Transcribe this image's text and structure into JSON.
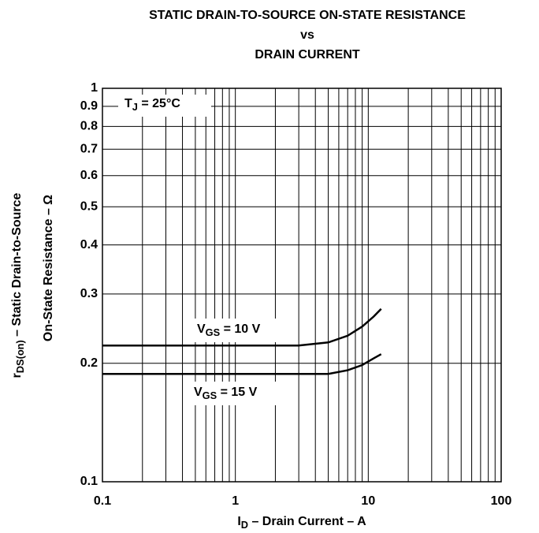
{
  "chart_data": {
    "type": "line",
    "title": [
      "STATIC DRAIN-TO-SOURCE ON-STATE RESISTANCE",
      "vs",
      "DRAIN CURRENT"
    ],
    "xlabel": {
      "main": "I",
      "sub": "D",
      "rest": " – Drain Current – A"
    },
    "ylabel": [
      {
        "main": "r",
        "sub": "DS(on)",
        "rest": " – Static Drain-to-Source"
      },
      {
        "main": "On-State Resistance – Ω"
      }
    ],
    "annotation": {
      "main": "T",
      "sub": "J",
      "rest": " = 25°C"
    },
    "xscale": "log",
    "yscale": "log",
    "grid": true,
    "xlim": [
      0.1,
      100
    ],
    "ylim": [
      0.1,
      1
    ],
    "xticks": [
      0.1,
      1,
      10,
      100
    ],
    "xticks_minor": [
      0.2,
      0.3,
      0.4,
      0.5,
      0.6,
      0.7,
      0.8,
      0.9,
      2,
      3,
      4,
      5,
      6,
      7,
      8,
      9,
      20,
      30,
      40,
      50,
      60,
      70,
      80,
      90
    ],
    "yticks": [
      0.1,
      0.2,
      0.3,
      0.4,
      0.5,
      0.6,
      0.7,
      0.8,
      0.9,
      1
    ],
    "x": [
      0.1,
      1,
      3,
      5,
      7,
      9,
      11,
      12.5
    ],
    "series": [
      {
        "label": {
          "main": "V",
          "sub": "GS",
          "rest": " = 10 V"
        },
        "color": "#000000",
        "values": [
          0.222,
          0.222,
          0.222,
          0.226,
          0.235,
          0.248,
          0.263,
          0.275
        ]
      },
      {
        "label": {
          "main": "V",
          "sub": "GS",
          "rest": " = 15 V"
        },
        "color": "#000000",
        "values": [
          0.188,
          0.188,
          0.188,
          0.188,
          0.192,
          0.198,
          0.206,
          0.211
        ]
      }
    ]
  }
}
